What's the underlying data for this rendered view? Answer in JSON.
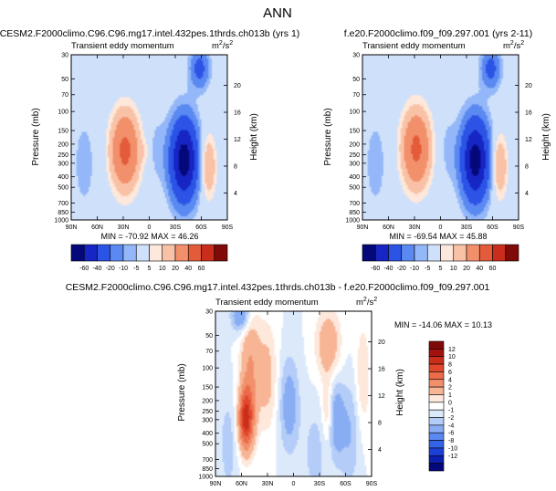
{
  "figure": {
    "title": "ANN"
  },
  "chart_data": [
    {
      "type": "heatmap",
      "panel": "test",
      "case_label": "CESM2.F2000climo.C96.C96.mg17.intel.432pes.1thrds.ch013b (yrs 1)",
      "title": "Transient eddy momentum",
      "units_label": "m²/s²",
      "units_base": "m",
      "units_exp": "2",
      "units_den_base": "/s",
      "units_den_exp": "2",
      "xlabel": "",
      "ylabel": "Pressure (mb)",
      "y2label": "Height (km)",
      "x_ticks": [
        "90N",
        "60N",
        "30N",
        "0",
        "30S",
        "60S",
        "90S"
      ],
      "x_values": [
        90,
        60,
        30,
        0,
        -30,
        -60,
        -90
      ],
      "y_ticks": [
        "30",
        "50",
        "70",
        "100",
        "150",
        "200",
        "250",
        "300",
        "400",
        "500",
        "700",
        "850",
        "1000"
      ],
      "y_values": [
        30,
        50,
        70,
        100,
        150,
        200,
        250,
        300,
        400,
        500,
        700,
        850,
        1000
      ],
      "y2_ticks": [
        "20",
        "16",
        "12",
        "8",
        "4"
      ],
      "y2_values": [
        20,
        16,
        12,
        8,
        4
      ],
      "stats_text": "MIN = -70.92  MAX = 46.26",
      "min": -70.92,
      "max": 46.26,
      "color_levels": [
        -60,
        -40,
        -20,
        -10,
        -5,
        5,
        10,
        20,
        40,
        60
      ],
      "features": [
        {
          "lat": 28,
          "p": 230,
          "value": 46,
          "w": 11,
          "h": 0.55
        },
        {
          "lat": -40,
          "p": 280,
          "value": -71,
          "w": 11,
          "h": 0.6
        },
        {
          "lat": -68,
          "p": 320,
          "value": 22,
          "w": 6,
          "h": 0.45
        },
        {
          "lat": 75,
          "p": 300,
          "value": -8,
          "w": 9,
          "h": 0.7
        },
        {
          "lat": -8,
          "p": 220,
          "value": -6,
          "w": 8,
          "h": 0.6
        },
        {
          "lat": 5,
          "p": 230,
          "value": 6,
          "w": 3,
          "h": 0.2
        },
        {
          "lat": -58,
          "p": 40,
          "value": -25,
          "w": 8,
          "h": 0.3
        }
      ]
    },
    {
      "type": "heatmap",
      "panel": "reference",
      "case_label": "f.e20.F2000climo.f09_f09.297.001 (yrs 2-11)",
      "title": "Transient eddy momentum",
      "units_label": "m²/s²",
      "units_base": "m",
      "units_exp": "2",
      "units_den_base": "/s",
      "units_den_exp": "2",
      "xlabel": "",
      "ylabel": "Pressure (mb)",
      "y2label": "Height (km)",
      "x_ticks": [
        "90N",
        "60N",
        "30N",
        "0",
        "30S",
        "60S",
        "90S"
      ],
      "x_values": [
        90,
        60,
        30,
        0,
        -30,
        -60,
        -90
      ],
      "y_ticks": [
        "30",
        "50",
        "70",
        "100",
        "150",
        "200",
        "250",
        "300",
        "400",
        "500",
        "700",
        "850",
        "1000"
      ],
      "y_values": [
        30,
        50,
        70,
        100,
        150,
        200,
        250,
        300,
        400,
        500,
        700,
        850,
        1000
      ],
      "y2_ticks": [
        "20",
        "16",
        "12",
        "8",
        "4"
      ],
      "y2_values": [
        20,
        16,
        12,
        8,
        4
      ],
      "stats_text": "MIN = -69.54  MAX = 45.88",
      "min": -69.54,
      "max": 45.88,
      "color_levels": [
        -60,
        -40,
        -20,
        -10,
        -5,
        5,
        10,
        20,
        40,
        60
      ],
      "features": [
        {
          "lat": 28,
          "p": 220,
          "value": 45,
          "w": 11,
          "h": 0.55
        },
        {
          "lat": -40,
          "p": 280,
          "value": -70,
          "w": 11,
          "h": 0.6
        },
        {
          "lat": -68,
          "p": 320,
          "value": 22,
          "w": 6,
          "h": 0.45
        },
        {
          "lat": 75,
          "p": 300,
          "value": -8,
          "w": 9,
          "h": 0.7
        },
        {
          "lat": -8,
          "p": 220,
          "value": -6,
          "w": 8,
          "h": 0.6
        },
        {
          "lat": -58,
          "p": 40,
          "value": -25,
          "w": 8,
          "h": 0.3
        }
      ]
    },
    {
      "type": "heatmap",
      "panel": "difference",
      "case_label": "CESM2.F2000climo.C96.C96.mg17.intel.432pes.1thrds.ch013b - f.e20.F2000climo.f09_f09.297.001",
      "title": "Transient eddy momentum",
      "units_label": "m²/s²",
      "units_base": "m",
      "units_exp": "2",
      "units_den_base": "/s",
      "units_den_exp": "2",
      "xlabel": "",
      "ylabel": "Pressure (mb)",
      "y2label": "Height (km)",
      "x_ticks": [
        "90N",
        "60N",
        "30N",
        "0",
        "30S",
        "60S",
        "90S"
      ],
      "x_values": [
        90,
        60,
        30,
        0,
        -30,
        -60,
        -90
      ],
      "y_ticks": [
        "30",
        "50",
        "70",
        "100",
        "150",
        "200",
        "250",
        "300",
        "400",
        "500",
        "700",
        "850",
        "1000"
      ],
      "y_values": [
        30,
        50,
        70,
        100,
        150,
        200,
        250,
        300,
        400,
        500,
        700,
        850,
        1000
      ],
      "y2_ticks": [
        "20",
        "16",
        "12",
        "8",
        "4"
      ],
      "y2_values": [
        20,
        16,
        12,
        8,
        4
      ],
      "stats_text": "MIN = -14.06  MAX = 10.13",
      "min": -14.06,
      "max": 10.13,
      "color_levels": [
        -12,
        -10,
        -8,
        -6,
        -4,
        -2,
        -1,
        0,
        1,
        2,
        4,
        6,
        8,
        10,
        12
      ],
      "features": [
        {
          "lat": 55,
          "p": 300,
          "value": 10,
          "w": 6,
          "h": 0.45
        },
        {
          "lat": 50,
          "p": 100,
          "value": 4,
          "w": 8,
          "h": 0.9
        },
        {
          "lat": 60,
          "p": 33,
          "value": -4,
          "w": 8,
          "h": 0.25
        },
        {
          "lat": 30,
          "p": 120,
          "value": 2.5,
          "w": 8,
          "h": 0.8
        },
        {
          "lat": 5,
          "p": 220,
          "value": -3,
          "w": 8,
          "h": 0.7
        },
        {
          "lat": -40,
          "p": 60,
          "value": 3.5,
          "w": 10,
          "h": 0.5
        },
        {
          "lat": -50,
          "p": 300,
          "value": -3,
          "w": 6,
          "h": 0.6
        },
        {
          "lat": -38,
          "p": 250,
          "value": 2,
          "w": 4,
          "h": 0.5
        },
        {
          "lat": -65,
          "p": 400,
          "value": -2,
          "w": 8,
          "h": 0.8
        },
        {
          "lat": -25,
          "p": 600,
          "value": -1.5,
          "w": 10,
          "h": 0.7
        },
        {
          "lat": 75,
          "p": 500,
          "value": -1.5,
          "w": 8,
          "h": 0.8
        },
        {
          "lat": -80,
          "p": 120,
          "value": 2,
          "w": 6,
          "h": 0.8
        }
      ]
    }
  ],
  "colorbars": {
    "top": {
      "labels": [
        "-60",
        "-40",
        "-20",
        "-10",
        "-5",
        "5",
        "10",
        "20",
        "40",
        "60"
      ],
      "colors": [
        "#05087a",
        "#1625c4",
        "#2b54e6",
        "#5a89f1",
        "#93b7f8",
        "#cfe0fb",
        "#fde8db",
        "#f9c2a6",
        "#f2906c",
        "#e45b3a",
        "#c92d1b",
        "#7f0a07"
      ]
    },
    "diff": {
      "labels": [
        "12",
        "10",
        "8",
        "6",
        "4",
        "2",
        "1",
        "0",
        "-1",
        "-2",
        "-4",
        "-6",
        "-8",
        "-10",
        "-12"
      ],
      "colors": [
        "#7f0a07",
        "#a1130c",
        "#c92d1b",
        "#e0482c",
        "#eb6a49",
        "#f2906c",
        "#f7b595",
        "#fde8db",
        "#ffffff",
        "#dce9fb",
        "#b3ccf8",
        "#88adf3",
        "#5a89f1",
        "#3463e8",
        "#1e3fd6",
        "#0d1fb0",
        "#05087a"
      ]
    }
  }
}
